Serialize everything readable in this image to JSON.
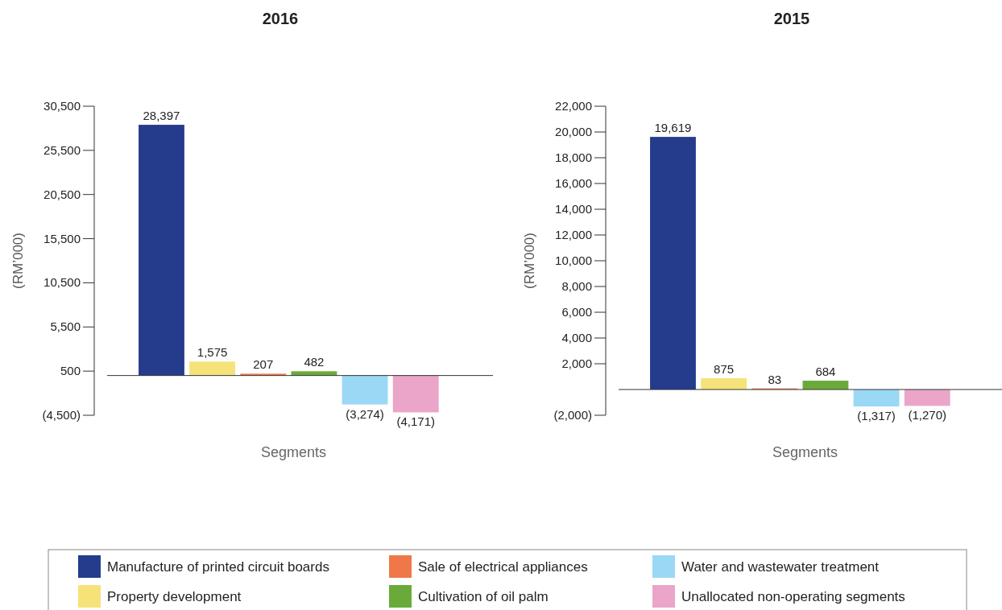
{
  "chart_data": [
    {
      "type": "bar",
      "title": "2016",
      "xlabel": "Segments",
      "ylabel": "(RM’000)",
      "categories": [
        null
      ],
      "series": [
        {
          "name": "Manufacture of printed circuit boards",
          "color": "#253c8c",
          "values": [
            28397
          ],
          "value_labels": [
            "28,397"
          ]
        },
        {
          "name": "Property development",
          "color": "#f5e37a",
          "values": [
            1575
          ],
          "value_labels": [
            "1,575"
          ]
        },
        {
          "name": "Sale of electrical appliances",
          "color": "#f07848",
          "values": [
            207
          ],
          "value_labels": [
            "207"
          ]
        },
        {
          "name": "Cultivation of oil palm",
          "color": "#6aaa3a",
          "values": [
            482
          ],
          "value_labels": [
            "482"
          ]
        },
        {
          "name": "Water and wastewater treatment",
          "color": "#9ad8f5",
          "values": [
            -3274
          ],
          "value_labels": [
            "(3,274)"
          ]
        },
        {
          "name": "Unallocated non-operating segments",
          "color": "#eaa5c8",
          "values": [
            -4171
          ],
          "value_labels": [
            "(4,171)"
          ]
        }
      ],
      "ylim": [
        -4500,
        30500
      ],
      "yticks": [
        {
          "value": -4500,
          "label": "(4,500)"
        },
        {
          "value": 500,
          "label": "500"
        },
        {
          "value": 5500,
          "label": "5,500"
        },
        {
          "value": 10500,
          "label": "10,500"
        },
        {
          "value": 15500,
          "label": "15,500"
        },
        {
          "value": 20500,
          "label": "20,500"
        },
        {
          "value": 25500,
          "label": "25,500"
        },
        {
          "value": 30500,
          "label": "30,500"
        }
      ],
      "legend": "bottom"
    },
    {
      "type": "bar",
      "title": "2015",
      "xlabel": "Segments",
      "ylabel": "(RM’000)",
      "categories": [
        null
      ],
      "series": [
        {
          "color": "#253c8c",
          "values": [
            19619
          ],
          "value_labels": [
            "19,619"
          ]
        },
        {
          "color": "#f5e37a",
          "values": [
            875
          ],
          "value_labels": [
            "875"
          ]
        },
        {
          "color": "#f07848",
          "values": [
            83
          ],
          "value_labels": [
            "83"
          ]
        },
        {
          "color": "#6aaa3a",
          "values": [
            684
          ],
          "value_labels": [
            "684"
          ]
        },
        {
          "color": "#9ad8f5",
          "values": [
            -1317
          ],
          "value_labels": [
            "(1,317)"
          ]
        },
        {
          "color": "#eaa5c8",
          "values": [
            -1270
          ],
          "value_labels": [
            "(1,270)"
          ]
        }
      ],
      "ylim": [
        -2000,
        22000
      ],
      "yticks": [
        {
          "value": -2000,
          "label": "(2,000)"
        },
        {
          "value": 2000,
          "label": "2,000"
        },
        {
          "value": 4000,
          "label": "4,000"
        },
        {
          "value": 6000,
          "label": "6,000"
        },
        {
          "value": 8000,
          "label": "8,000"
        },
        {
          "value": 10000,
          "label": "10,000"
        },
        {
          "value": 12000,
          "label": "12,000"
        },
        {
          "value": 14000,
          "label": "14,000"
        },
        {
          "value": 16000,
          "label": "16,000"
        },
        {
          "value": 18000,
          "label": "18,000"
        },
        {
          "value": 20000,
          "label": "20,000"
        },
        {
          "value": 22000,
          "label": "22,000"
        }
      ]
    }
  ]
}
